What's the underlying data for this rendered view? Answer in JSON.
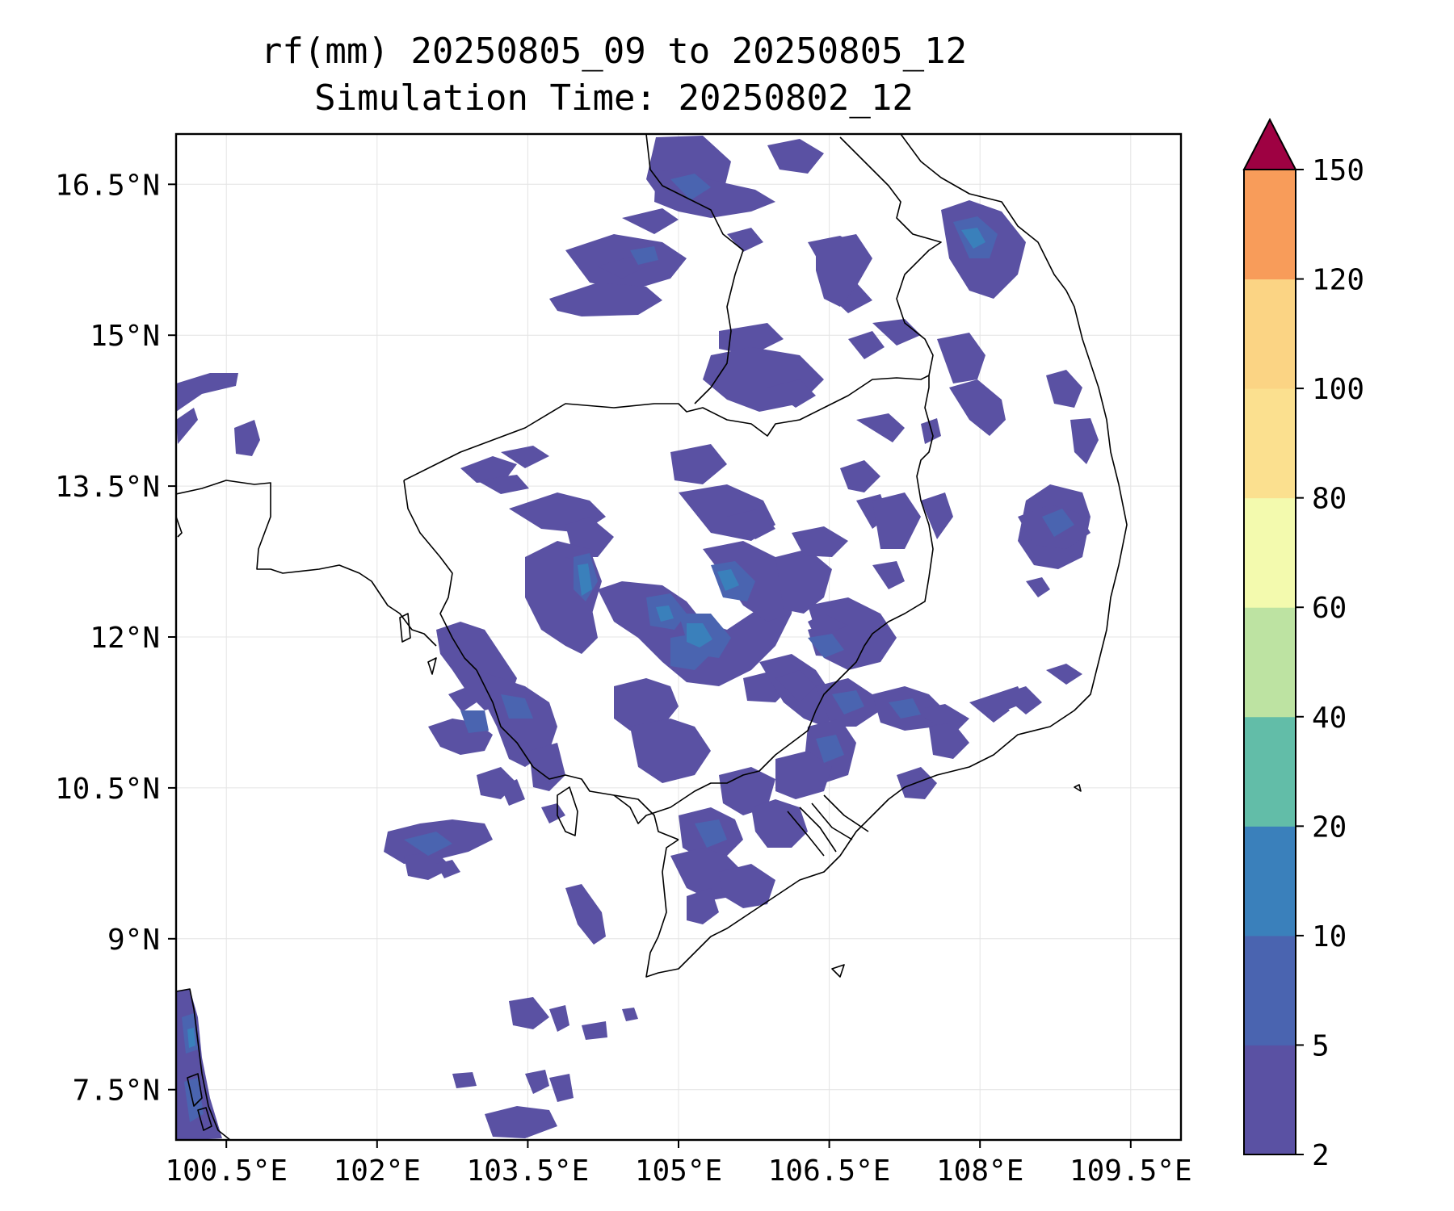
{
  "title": {
    "line1": "rf(mm) 20250805_09 to 20250805_12",
    "line2": "Simulation Time: 20250802_12"
  },
  "map": {
    "lon_range": [
      100.0,
      110.0
    ],
    "lat_range": [
      7.0,
      17.0
    ],
    "lon_ticks": [
      100.5,
      102,
      103.5,
      105,
      106.5,
      108,
      109.5
    ],
    "lon_tick_labels": [
      "100.5°E",
      "102°E",
      "103.5°E",
      "105°E",
      "106.5°E",
      "108°E",
      "109.5°E"
    ],
    "lat_ticks": [
      7.5,
      9,
      10.5,
      12,
      13.5,
      15,
      16.5
    ],
    "lat_tick_labels": [
      "7.5°N",
      "9°N",
      "10.5°N",
      "12°N",
      "13.5°N",
      "15°N",
      "16.5°N"
    ],
    "gridlines": true
  },
  "colorbar": {
    "levels": [
      2,
      5,
      10,
      20,
      40,
      60,
      80,
      100,
      120,
      150
    ],
    "level_labels": [
      "2",
      "5",
      "10",
      "20",
      "40",
      "60",
      "80",
      "100",
      "120",
      "150"
    ],
    "colors": [
      "#5a51a3",
      "#4a64b0",
      "#3a80bb",
      "#62bda8",
      "#bde3a2",
      "#f3faae",
      "#fbe08f",
      "#fbd484",
      "#f89c5a",
      "#d53e4f"
    ],
    "extend_color": "#9e0142",
    "extend": "max"
  },
  "rain_colors": {
    "light": "#5a51a3",
    "moderate": "#4a64b0",
    "heavy": "#3a80bb"
  }
}
